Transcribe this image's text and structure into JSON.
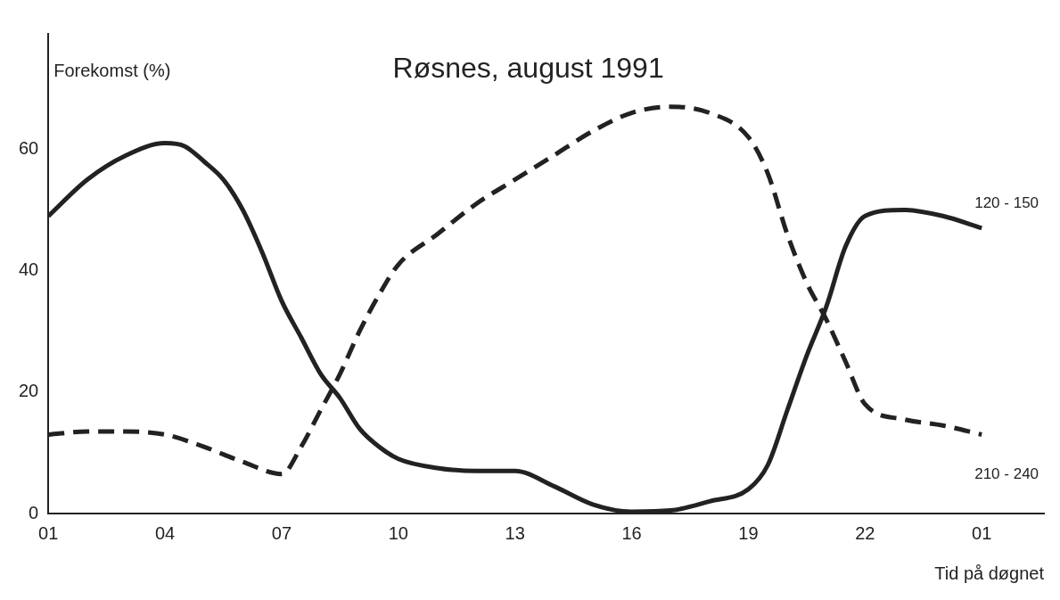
{
  "chart_data": {
    "type": "line",
    "title": "Røsnes, august 1991",
    "xlabel": "Tid på døgnet",
    "ylabel": "Forekomst (%)",
    "xlim": [
      "1991-08-01T01:00",
      "1991-08-02T02:36"
    ],
    "xticks": [
      {
        "value": "1991-08-01T01:00",
        "label": "01"
      },
      {
        "value": "1991-08-01T04:00",
        "label": "04"
      },
      {
        "value": "1991-08-01T07:00",
        "label": "07"
      },
      {
        "value": "1991-08-01T10:00",
        "label": "10"
      },
      {
        "value": "1991-08-01T13:00",
        "label": "13"
      },
      {
        "value": "1991-08-01T16:00",
        "label": "16"
      },
      {
        "value": "1991-08-01T19:00",
        "label": "19"
      },
      {
        "value": "1991-08-01T22:00",
        "label": "22"
      },
      {
        "value": "1991-08-02T01:00",
        "label": "01"
      }
    ],
    "ylim": [
      0,
      79
    ],
    "yticks": [
      0,
      20,
      40,
      60
    ],
    "grid": false,
    "legend": false,
    "marker": "none",
    "series": [
      {
        "name": "120 - 150",
        "color": "#222222",
        "line_style": "solid",
        "x": [
          "1991-08-01T01:00",
          "1991-08-01T02:00",
          "1991-08-01T03:00",
          "1991-08-01T04:00",
          "1991-08-01T04:30",
          "1991-08-01T05:00",
          "1991-08-01T05:30",
          "1991-08-01T06:00",
          "1991-08-01T06:30",
          "1991-08-01T07:00",
          "1991-08-01T07:30",
          "1991-08-01T08:00",
          "1991-08-01T08:30",
          "1991-08-01T09:00",
          "1991-08-01T09:30",
          "1991-08-01T10:00",
          "1991-08-01T11:00",
          "1991-08-01T12:00",
          "1991-08-01T13:00",
          "1991-08-01T14:00",
          "1991-08-01T15:00",
          "1991-08-01T16:00",
          "1991-08-01T17:00",
          "1991-08-01T18:00",
          "1991-08-01T19:00",
          "1991-08-01T19:30",
          "1991-08-01T20:00",
          "1991-08-01T20:30",
          "1991-08-01T21:00",
          "1991-08-01T21:30",
          "1991-08-01T22:00",
          "1991-08-01T23:00",
          "1991-08-02T00:00",
          "1991-08-02T01:00"
        ],
        "values": [
          49,
          55,
          59,
          61,
          60.5,
          58,
          55,
          50,
          43,
          35,
          29,
          23,
          19,
          14,
          11,
          9,
          7.5,
          7,
          7,
          4.5,
          1.5,
          0.3,
          0.5,
          2,
          4,
          8,
          17,
          26,
          34,
          44,
          49,
          50,
          49,
          47
        ]
      },
      {
        "name": "210 - 240",
        "color": "#222222",
        "line_style": "dashed",
        "x": [
          "1991-08-01T01:00",
          "1991-08-01T02:00",
          "1991-08-01T03:00",
          "1991-08-01T04:00",
          "1991-08-01T05:00",
          "1991-08-01T06:00",
          "1991-08-01T07:00",
          "1991-08-01T07:30",
          "1991-08-01T08:00",
          "1991-08-01T08:30",
          "1991-08-01T09:00",
          "1991-08-01T09:30",
          "1991-08-01T10:00",
          "1991-08-01T11:00",
          "1991-08-01T12:00",
          "1991-08-01T13:00",
          "1991-08-01T14:00",
          "1991-08-01T15:00",
          "1991-08-01T16:00",
          "1991-08-01T17:00",
          "1991-08-01T18:00",
          "1991-08-01T19:00",
          "1991-08-01T19:30",
          "1991-08-01T20:00",
          "1991-08-01T20:30",
          "1991-08-01T21:00",
          "1991-08-01T21:30",
          "1991-08-01T22:00",
          "1991-08-01T23:00",
          "1991-08-02T00:00",
          "1991-08-02T01:00"
        ],
        "values": [
          13,
          13.5,
          13.5,
          13,
          11,
          8.5,
          6.5,
          11,
          17,
          23,
          30,
          36,
          41,
          46,
          51,
          55,
          59,
          63,
          66,
          67,
          66,
          62,
          56,
          46,
          38,
          32,
          25,
          18,
          15.5,
          14.5,
          13
        ]
      }
    ]
  }
}
